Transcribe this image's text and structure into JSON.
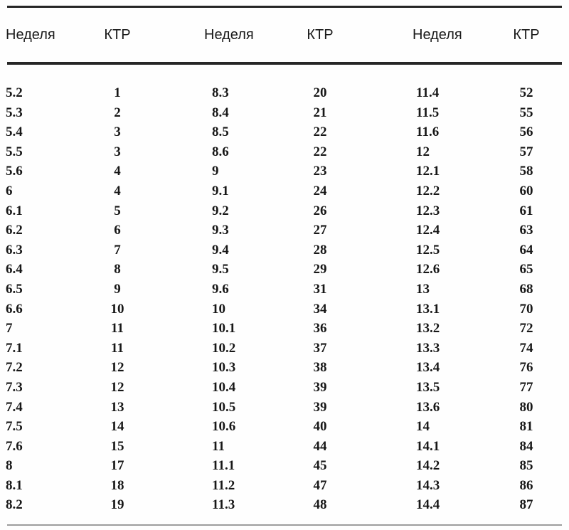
{
  "table": {
    "headers": [
      "Неделя",
      "КТР",
      "Неделя",
      "КТР",
      "Неделя",
      "КТР"
    ],
    "rows": [
      [
        "5.2",
        "1",
        "8.3",
        "20",
        "11.4",
        "52"
      ],
      [
        "5.3",
        "2",
        "8.4",
        "21",
        "11.5",
        "55"
      ],
      [
        "5.4",
        "3",
        "8.5",
        "22",
        "11.6",
        "56"
      ],
      [
        "5.5",
        "3",
        "8.6",
        "22",
        "12",
        "57"
      ],
      [
        "5.6",
        "4",
        "9",
        "23",
        "12.1",
        "58"
      ],
      [
        "6",
        "4",
        "9.1",
        "24",
        "12.2",
        "60"
      ],
      [
        "6.1",
        "5",
        "9.2",
        "26",
        "12.3",
        "61"
      ],
      [
        "6.2",
        "6",
        "9.3",
        "27",
        "12.4",
        "63"
      ],
      [
        "6.3",
        "7",
        "9.4",
        "28",
        "12.5",
        "64"
      ],
      [
        "6.4",
        "8",
        "9.5",
        "29",
        "12.6",
        "65"
      ],
      [
        "6.5",
        "9",
        "9.6",
        "31",
        "13",
        "68"
      ],
      [
        "6.6",
        "10",
        "10",
        "34",
        "13.1",
        "70"
      ],
      [
        "7",
        "11",
        "10.1",
        "36",
        "13.2",
        "72"
      ],
      [
        "7.1",
        "11",
        "10.2",
        "37",
        "13.3",
        "74"
      ],
      [
        "7.2",
        "12",
        "10.3",
        "38",
        "13.4",
        "76"
      ],
      [
        "7.3",
        "12",
        "10.4",
        "39",
        "13.5",
        "77"
      ],
      [
        "7.4",
        "13",
        "10.5",
        "39",
        "13.6",
        "80"
      ],
      [
        "7.5",
        "14",
        "10.6",
        "40",
        "14",
        "81"
      ],
      [
        "7.6",
        "15",
        "11",
        "44",
        "14.1",
        "84"
      ],
      [
        "8",
        "17",
        "11.1",
        "45",
        "14.2",
        "85"
      ],
      [
        "8.1",
        "18",
        "11.2",
        "47",
        "14.3",
        "86"
      ],
      [
        "8.2",
        "19",
        "11.3",
        "48",
        "14.4",
        "87"
      ]
    ]
  }
}
